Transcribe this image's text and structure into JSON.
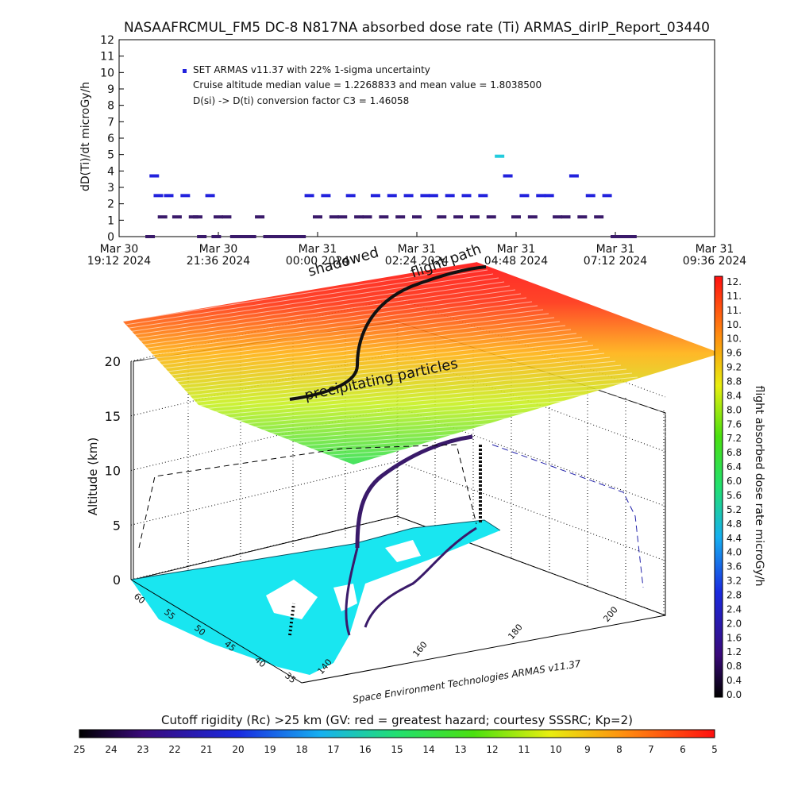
{
  "title": "NASAAFRCMUL_FM5 DC-8   N817NA absorbed dose rate (Ti) ARMAS_dirIP_Report_03440",
  "colors": {
    "dot_blue": "#2222dd",
    "dot_purple": "#3a1a6a",
    "dot_cyan": "#22ccdd",
    "land_cyan": "#19e6f0",
    "axis": "#000000"
  },
  "chart_data": [
    {
      "type": "line",
      "name": "dose-rate-timeseries",
      "ylabel": "dD(Ti)/dt microGy/h",
      "xlabel": "",
      "ylim": [
        0,
        12
      ],
      "y_ticks": [
        "0",
        "1",
        "2",
        "3",
        "4",
        "5",
        "6",
        "7",
        "8",
        "9",
        "10",
        "11",
        "12"
      ],
      "x_ticks": [
        {
          "date": "Mar 30",
          "time": "19:12 2024"
        },
        {
          "date": "Mar 30",
          "time": "21:36 2024"
        },
        {
          "date": "Mar 31",
          "time": "00:00 2024"
        },
        {
          "date": "Mar 31",
          "time": "02:24 2024"
        },
        {
          "date": "Mar 31",
          "time": "04:48 2024"
        },
        {
          "date": "Mar 31",
          "time": "07:12 2024"
        },
        {
          "date": "Mar 31",
          "time": "09:36 2024"
        }
      ],
      "xlim_hours_from_first_tick": [
        0,
        14.4
      ],
      "annotations": [
        "SET ARMAS v11.37 with 22% 1-sigma uncertainty",
        "Cruise altitude median value = 1.2268833 and mean value = 1.8038500",
        "D(si) -> D(ti) conversion factor C3 = 1.46058"
      ],
      "x": [
        0.75,
        0.85,
        0.95,
        1.05,
        1.2,
        1.4,
        1.6,
        1.8,
        1.9,
        2.0,
        2.2,
        2.35,
        2.4,
        2.6,
        2.8,
        3.0,
        3.2,
        3.4,
        3.6,
        3.8,
        4.0,
        4.2,
        4.4,
        4.6,
        4.8,
        5.0,
        5.2,
        5.4,
        5.6,
        5.8,
        6.0,
        6.2,
        6.4,
        6.6,
        6.8,
        7.0,
        7.2,
        7.4,
        7.6,
        7.8,
        8.0,
        8.2,
        8.4,
        8.6,
        8.8,
        9.0,
        9.2,
        9.4,
        9.6,
        9.8,
        10.0,
        10.2,
        10.4,
        10.6,
        10.8,
        11.0,
        11.2,
        11.4,
        11.6,
        11.8,
        12.0,
        12.2,
        12.4
      ],
      "values": [
        0,
        3.7,
        2.5,
        1.2,
        2.5,
        1.2,
        2.5,
        1.2,
        1.2,
        0,
        2.5,
        0,
        1.2,
        1.2,
        0,
        0,
        0,
        1.2,
        0,
        0,
        0,
        0,
        0,
        2.5,
        1.2,
        2.5,
        1.2,
        1.2,
        2.5,
        1.2,
        1.2,
        2.5,
        1.2,
        2.5,
        1.2,
        2.5,
        1.2,
        2.5,
        2.5,
        1.2,
        2.5,
        1.2,
        2.5,
        1.2,
        2.5,
        1.2,
        4.9,
        3.7,
        1.2,
        2.5,
        1.2,
        2.5,
        2.5,
        1.2,
        1.2,
        3.7,
        1.2,
        2.5,
        1.2,
        2.5,
        0,
        0,
        0
      ],
      "error_bar_label": "|"
    },
    {
      "type": "scatter",
      "name": "3d-flight-path",
      "ylabel": "Altitude (km)",
      "z_ticks": [
        "0",
        "5",
        "10",
        "15",
        "20"
      ],
      "lat_ticks": [
        "60",
        "55",
        "50",
        "45",
        "40",
        "35"
      ],
      "lon_ticks": [
        "140",
        "160",
        "180",
        "200"
      ],
      "overlay_labels": [
        "flight path",
        "shadowed",
        "precipitating particles"
      ],
      "footer": "Space Environment Technologies ARMAS v11.37"
    },
    {
      "type": "heatmap",
      "name": "dose-rate-colorbar",
      "label": "flight absorbed dose rate microGy/h",
      "ticks": [
        "12.",
        "11.",
        "11.",
        "10.",
        "10.",
        "9.6",
        "9.2",
        "8.8",
        "8.4",
        "8.0",
        "7.6",
        "7.2",
        "6.8",
        "6.4",
        "6.0",
        "5.6",
        "5.2",
        "4.8",
        "4.4",
        "4.0",
        "3.6",
        "3.2",
        "2.8",
        "2.4",
        "2.0",
        "1.6",
        "1.2",
        "0.8",
        "0.4",
        "0.0"
      ]
    },
    {
      "type": "heatmap",
      "name": "cutoff-rigidity-colorbar",
      "label": "Cutoff rigidity (Rc) >25 km (GV: red = greatest hazard; courtesy SSSRC; Kp=2)",
      "ticks": [
        "25",
        "24",
        "23",
        "22",
        "21",
        "20",
        "19",
        "18",
        "17",
        "16",
        "15",
        "14",
        "13",
        "12",
        "11",
        "10",
        "9",
        "8",
        "7",
        "6",
        "5"
      ]
    }
  ]
}
